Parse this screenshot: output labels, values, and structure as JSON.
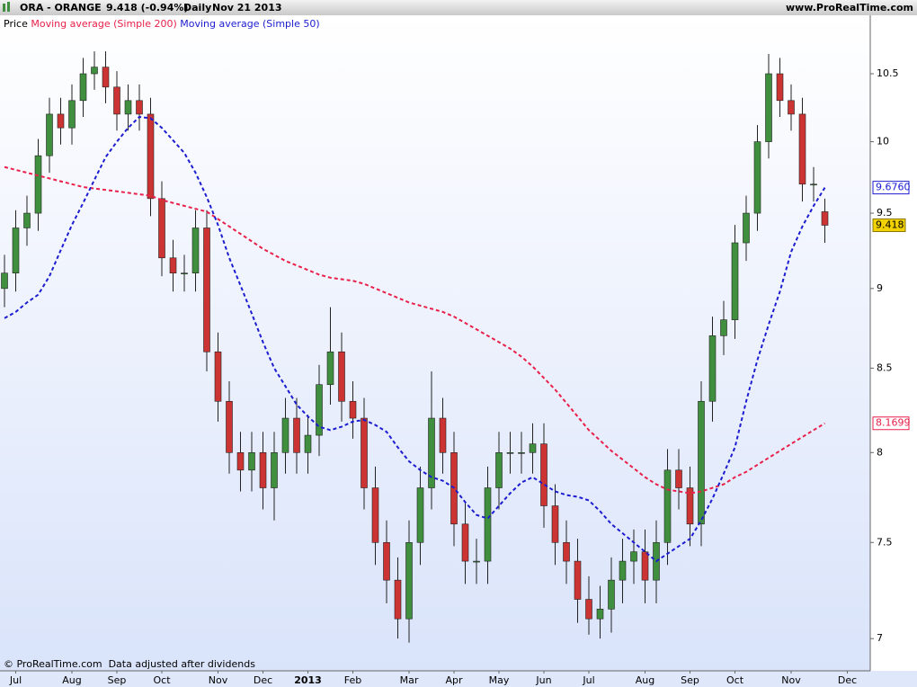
{
  "chart_data": {
    "type": "candlestick",
    "title": "ORA - ORANGE",
    "subtitle": "9.418 (-0.94%)",
    "period": "Daily",
    "date": "Nov 21 2013",
    "source": "www.ProRealTime.com",
    "footer": "© ProRealTime.com  Data adjusted after dividends",
    "log_scale": true,
    "ylim": [
      6.84,
      10.95
    ],
    "yticks": [
      7,
      7.5,
      8,
      8.5,
      9,
      9.5,
      10,
      10.5
    ],
    "categories": [
      null,
      "Jul",
      null,
      null,
      null,
      null,
      "Aug",
      null,
      null,
      null,
      "Sep",
      null,
      null,
      null,
      "Oct",
      null,
      null,
      null,
      null,
      "Nov",
      null,
      null,
      null,
      "Dec",
      null,
      null,
      null,
      "2013",
      null,
      null,
      null,
      "Feb",
      null,
      null,
      null,
      null,
      "Mar",
      null,
      null,
      null,
      "Apr",
      null,
      null,
      null,
      "May",
      null,
      null,
      null,
      "Jun",
      null,
      null,
      null,
      "Jul",
      null,
      null,
      null,
      null,
      "Aug",
      null,
      null,
      null,
      "Sep",
      null,
      null,
      null,
      "Oct",
      null,
      null,
      null,
      null,
      "Nov",
      null,
      null,
      null,
      null,
      "Dec"
    ],
    "series": [
      {
        "name": "Price",
        "type": "candlestick",
        "color": "#000000",
        "up_color": "#3f8f3f",
        "down_color": "#cc3333",
        "open": [
          9.0,
          9.1,
          9.4,
          9.5,
          9.9,
          10.2,
          10.1,
          10.3,
          10.5,
          10.55,
          10.4,
          10.2,
          10.3,
          10.2,
          9.6,
          9.2,
          9.1,
          9.1,
          9.4,
          8.6,
          8.3,
          8.0,
          7.9,
          8.0,
          7.8,
          8.0,
          8.2,
          8.0,
          8.1,
          8.4,
          8.6,
          8.3,
          8.2,
          7.8,
          7.5,
          7.3,
          7.1,
          7.5,
          7.8,
          8.2,
          8.0,
          7.6,
          7.4,
          7.4,
          7.8,
          8.0,
          8.0,
          8.0,
          8.05,
          7.7,
          7.5,
          7.4,
          7.2,
          7.1,
          7.15,
          7.3,
          7.4,
          7.45,
          7.3,
          7.5,
          7.9,
          7.8,
          7.6,
          8.3,
          8.7,
          8.8,
          9.3,
          9.5,
          10.0,
          10.5,
          10.3,
          10.2,
          9.7,
          9.51,
          null,
          null
        ],
        "high": [
          9.22,
          9.52,
          9.62,
          10.02,
          10.32,
          10.32,
          10.42,
          10.62,
          10.67,
          10.67,
          10.52,
          10.42,
          10.42,
          10.32,
          9.72,
          9.32,
          9.22,
          9.52,
          9.52,
          8.72,
          8.42,
          8.12,
          8.12,
          8.12,
          8.12,
          8.32,
          8.32,
          8.22,
          8.52,
          8.88,
          8.72,
          8.42,
          8.32,
          7.92,
          7.62,
          7.42,
          7.62,
          7.92,
          8.48,
          8.32,
          8.12,
          7.72,
          7.52,
          7.92,
          8.12,
          8.12,
          8.12,
          8.17,
          8.17,
          7.82,
          7.62,
          7.52,
          7.32,
          7.27,
          7.42,
          7.52,
          7.57,
          7.57,
          7.62,
          8.02,
          8.02,
          7.92,
          8.42,
          8.82,
          8.92,
          9.42,
          9.62,
          10.12,
          10.65,
          10.62,
          10.42,
          10.32,
          9.82,
          9.6,
          null,
          null
        ],
        "low": [
          8.88,
          8.98,
          9.28,
          9.38,
          9.78,
          9.98,
          9.98,
          10.18,
          10.38,
          10.28,
          10.08,
          10.08,
          10.08,
          9.48,
          9.08,
          8.98,
          8.98,
          8.98,
          8.48,
          8.18,
          7.88,
          7.78,
          7.78,
          7.68,
          7.62,
          7.88,
          7.88,
          7.88,
          7.98,
          8.28,
          8.18,
          8.08,
          7.68,
          7.38,
          7.18,
          7.0,
          6.98,
          7.38,
          7.68,
          7.88,
          7.48,
          7.28,
          7.28,
          7.28,
          7.68,
          7.88,
          7.88,
          7.88,
          7.58,
          7.38,
          7.28,
          7.08,
          7.02,
          7.0,
          7.03,
          7.18,
          7.28,
          7.18,
          7.18,
          7.38,
          7.68,
          7.48,
          7.48,
          8.18,
          8.58,
          8.68,
          9.18,
          9.38,
          9.88,
          10.18,
          10.08,
          9.58,
          9.58,
          9.3,
          null,
          null
        ],
        "close": [
          9.1,
          9.4,
          9.5,
          9.9,
          10.2,
          10.1,
          10.3,
          10.5,
          10.55,
          10.4,
          10.2,
          10.3,
          10.2,
          9.6,
          9.2,
          9.1,
          9.1,
          9.4,
          8.6,
          8.3,
          8.0,
          7.9,
          8.0,
          7.8,
          8.0,
          8.2,
          8.0,
          8.1,
          8.4,
          8.6,
          8.3,
          8.2,
          7.8,
          7.5,
          7.3,
          7.1,
          7.5,
          7.8,
          8.2,
          8.0,
          7.6,
          7.4,
          7.4,
          7.8,
          8.0,
          8.0,
          8.0,
          8.05,
          7.7,
          7.5,
          7.4,
          7.2,
          7.1,
          7.15,
          7.3,
          7.4,
          7.45,
          7.3,
          7.5,
          7.9,
          7.8,
          7.6,
          8.3,
          8.7,
          8.8,
          9.3,
          9.5,
          10.0,
          10.5,
          10.3,
          10.2,
          9.7,
          9.7,
          9.418,
          null,
          null
        ],
        "label_color": "#f2d200"
      },
      {
        "name": "Moving average (Simple 200)",
        "type": "line",
        "color": "#e8204a",
        "values": [
          9.82,
          9.8,
          9.78,
          9.76,
          9.74,
          9.72,
          9.7,
          9.68,
          9.67,
          9.66,
          9.65,
          9.64,
          9.63,
          9.62,
          9.59,
          9.57,
          9.55,
          9.53,
          9.51,
          9.46,
          9.41,
          9.36,
          9.31,
          9.26,
          9.22,
          9.18,
          9.15,
          9.12,
          9.09,
          9.07,
          9.06,
          9.05,
          9.03,
          9.0,
          8.97,
          8.94,
          8.91,
          8.89,
          8.87,
          8.85,
          8.82,
          8.78,
          8.74,
          8.7,
          8.66,
          8.62,
          8.57,
          8.51,
          8.44,
          8.37,
          8.29,
          8.21,
          8.13,
          8.07,
          8.01,
          7.96,
          7.91,
          7.86,
          7.82,
          7.79,
          7.78,
          7.77,
          7.78,
          7.8,
          7.82,
          7.86,
          7.89,
          7.93,
          7.97,
          8.01,
          8.05,
          8.09,
          8.13,
          8.1699,
          null,
          null
        ]
      },
      {
        "name": "Moving average (Simple 50)",
        "type": "line",
        "color": "#1c1cd0",
        "values": [
          8.81,
          8.85,
          8.91,
          8.96,
          9.08,
          9.25,
          9.42,
          9.57,
          9.73,
          9.89,
          10.0,
          10.1,
          10.18,
          10.17,
          10.1,
          10.01,
          9.92,
          9.78,
          9.61,
          9.42,
          9.2,
          9.02,
          8.84,
          8.66,
          8.5,
          8.39,
          8.28,
          8.21,
          8.15,
          8.13,
          8.15,
          8.18,
          8.19,
          8.16,
          8.12,
          8.03,
          7.95,
          7.9,
          7.86,
          7.84,
          7.8,
          7.72,
          7.65,
          7.63,
          7.7,
          7.77,
          7.83,
          7.86,
          7.82,
          7.78,
          7.76,
          7.75,
          7.73,
          7.67,
          7.6,
          7.55,
          7.5,
          7.45,
          7.4,
          7.44,
          7.48,
          7.52,
          7.62,
          7.74,
          7.88,
          8.03,
          8.3,
          8.55,
          8.77,
          8.98,
          9.24,
          9.41,
          9.55,
          9.676,
          null,
          null
        ],
        "value_labels": [
          null,
          null,
          null,
          null,
          null,
          null,
          null,
          null,
          null,
          null,
          null,
          null,
          null,
          null,
          null,
          null,
          null,
          null,
          null,
          null,
          null,
          null,
          null,
          null,
          null,
          null,
          null,
          null,
          null,
          null,
          null,
          null,
          null,
          null,
          null,
          null,
          null,
          null,
          null,
          null,
          null,
          null,
          null,
          null,
          null,
          null,
          null,
          null,
          null,
          null,
          null,
          null,
          null,
          null,
          null,
          null,
          null,
          null,
          null,
          null,
          null,
          null,
          null,
          null,
          null,
          null,
          null,
          null,
          null,
          null,
          null,
          null,
          null,
          "9.6760",
          null,
          null
        ]
      }
    ]
  }
}
